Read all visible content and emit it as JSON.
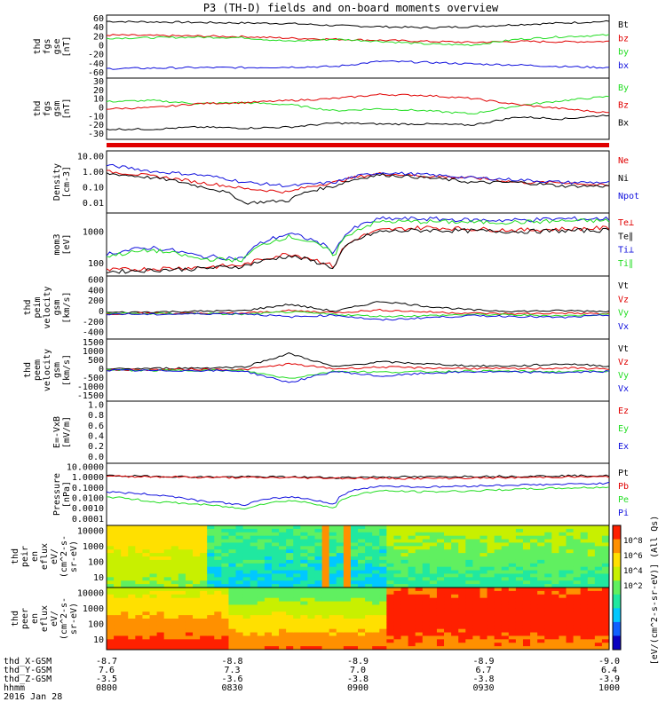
{
  "title": "P3 (TH-D) fields and on-board moments overview",
  "colors": {
    "black": "#000000",
    "red": "#e00000",
    "green": "#22dd22",
    "blue": "#1010dd"
  },
  "chart_data": [
    {
      "type": "line",
      "panel": "fgs_gse",
      "ylabel": [
        "thd",
        "fgs",
        "gse",
        "[nT]"
      ],
      "yticks": [
        "60",
        "40",
        "20",
        "0",
        "-20",
        "-40",
        "-60"
      ],
      "ylim": [
        -60,
        60
      ],
      "series": [
        {
          "name": "Bt",
          "color": "black",
          "values": [
            48,
            47,
            46,
            45,
            44,
            40,
            38,
            36,
            38,
            42,
            45,
            48
          ]
        },
        {
          "name": "bz",
          "color": "red",
          "values": [
            22,
            21,
            20,
            19,
            16,
            14,
            12,
            10,
            8,
            10,
            9,
            10
          ]
        },
        {
          "name": "by",
          "color": "green",
          "values": [
            16,
            17,
            18,
            17,
            10,
            14,
            10,
            5,
            3,
            14,
            19,
            22
          ]
        },
        {
          "name": "bx",
          "color": "blue",
          "values": [
            -42,
            -41,
            -40,
            -40,
            -39,
            -38,
            -28,
            -30,
            -33,
            -35,
            -38,
            -40
          ]
        }
      ]
    },
    {
      "type": "line",
      "panel": "fgs_gsm",
      "ylabel": [
        "thd",
        "fgs",
        "gsm",
        "[nT]"
      ],
      "yticks": [
        "30",
        "20",
        "10",
        "0",
        "-10",
        "-20",
        "-30"
      ],
      "ylim": [
        -30,
        30
      ],
      "series": [
        {
          "name": "By",
          "color": "green",
          "values": [
            7,
            8,
            5,
            6,
            4,
            -2,
            0,
            -2,
            -5,
            3,
            8,
            12
          ]
        },
        {
          "name": "Bz",
          "color": "red",
          "values": [
            0,
            1,
            5,
            6,
            8,
            10,
            14,
            13,
            10,
            4,
            0,
            -4
          ]
        },
        {
          "name": "Bx",
          "color": "black",
          "values": [
            -20,
            -20,
            -18,
            -19,
            -18,
            -14,
            -15,
            -15,
            -16,
            -8,
            -10,
            -6
          ]
        }
      ]
    },
    {
      "type": "line",
      "panel": "density",
      "ylog": true,
      "ylabel": [
        "Density",
        "[cm-3]"
      ],
      "yticks": [
        "10.00",
        "1.00",
        "0.10",
        "0.01"
      ],
      "ylim": [
        0.01,
        10
      ],
      "series": [
        {
          "name": "Ne",
          "color": "red",
          "values": [
            1.0,
            0.6,
            0.3,
            0.15,
            0.1,
            0.3,
            0.8,
            0.6,
            0.5,
            0.3,
            0.3,
            0.2
          ]
        },
        {
          "name": "Ni",
          "color": "black",
          "values": [
            0.8,
            0.5,
            0.2,
            0.03,
            0.04,
            0.2,
            0.7,
            0.5,
            0.3,
            0.3,
            0.2,
            0.2
          ]
        },
        {
          "name": "Npot",
          "color": "blue",
          "values": [
            2.0,
            1.0,
            0.7,
            0.3,
            0.2,
            0.3,
            0.9,
            0.7,
            0.5,
            0.4,
            0.3,
            0.3
          ]
        }
      ]
    },
    {
      "type": "line",
      "panel": "temperature",
      "ylog": true,
      "ylabel": [
        "mom3",
        "[eV]"
      ],
      "yticks": [
        "1000",
        "100"
      ],
      "ylim": [
        50,
        8000
      ],
      "series": [
        {
          "name": "Te⊥",
          "color": "red",
          "values": [
            80,
            90,
            100,
            120,
            300,
            100,
            2000,
            2500,
            2200,
            2000,
            2200,
            2400
          ]
        },
        {
          "name": "Te∥",
          "color": "black",
          "values": [
            70,
            80,
            90,
            110,
            250,
            90,
            1800,
            2000,
            1900,
            1800,
            1900,
            2000
          ]
        },
        {
          "name": "Ti⊥",
          "color": "blue",
          "values": [
            300,
            500,
            250,
            200,
            1500,
            300,
            5000,
            5000,
            4500,
            4500,
            5000,
            5000
          ]
        },
        {
          "name": "Ti∥",
          "color": "green",
          "values": [
            250,
            400,
            200,
            180,
            1200,
            250,
            4000,
            4000,
            3800,
            3800,
            4200,
            4300
          ]
        }
      ]
    },
    {
      "type": "line",
      "panel": "ion_velocity",
      "ylabel": [
        "thd",
        "peim",
        "velocity",
        "gsm",
        "[km/s]"
      ],
      "yticks": [
        "600",
        "400",
        "200",
        "0",
        "-200",
        "-400"
      ],
      "ylim": [
        -400,
        600
      ],
      "series": [
        {
          "name": "Vt",
          "color": "black",
          "values": [
            20,
            30,
            40,
            50,
            150,
            40,
            200,
            120,
            60,
            40,
            50,
            40
          ]
        },
        {
          "name": "Vz",
          "color": "red",
          "values": [
            0,
            10,
            5,
            10,
            50,
            20,
            60,
            30,
            10,
            0,
            10,
            0
          ]
        },
        {
          "name": "Vy",
          "color": "green",
          "values": [
            10,
            0,
            5,
            -10,
            30,
            -10,
            -40,
            -30,
            -10,
            -20,
            -30,
            -10
          ]
        },
        {
          "name": "Vx",
          "color": "blue",
          "values": [
            0,
            -10,
            0,
            5,
            -50,
            -20,
            -100,
            -60,
            -30,
            -40,
            -60,
            -20
          ]
        }
      ]
    },
    {
      "type": "line",
      "panel": "electron_velocity",
      "ylabel": [
        "thd",
        "peem",
        "velocity",
        "gsm",
        "[km/s]"
      ],
      "yticks": [
        "1500",
        "1000",
        "500",
        "0",
        "-500",
        "-1000",
        "-1500"
      ],
      "ylim": [
        -1500,
        1500
      ],
      "series": [
        {
          "name": "Vt",
          "color": "black",
          "values": [
            50,
            80,
            100,
            150,
            800,
            150,
            400,
            300,
            200,
            200,
            300,
            200
          ]
        },
        {
          "name": "Vz",
          "color": "red",
          "values": [
            0,
            20,
            40,
            20,
            300,
            60,
            150,
            100,
            80,
            60,
            100,
            60
          ]
        },
        {
          "name": "Vy",
          "color": "green",
          "values": [
            0,
            -20,
            -10,
            -30,
            -400,
            -50,
            -100,
            -80,
            -40,
            -60,
            -80,
            -40
          ]
        },
        {
          "name": "Vx",
          "color": "blue",
          "values": [
            -10,
            -30,
            -20,
            -40,
            -600,
            -60,
            -300,
            -150,
            -80,
            -100,
            -120,
            -60
          ]
        }
      ]
    },
    {
      "type": "line",
      "panel": "efield",
      "ylabel": [
        "E=-VxB",
        "[mV/m]"
      ],
      "yticks": [
        "1.0",
        "0.8",
        "0.6",
        "0.4",
        "0.2",
        "0.0"
      ],
      "ylim": [
        0,
        1
      ],
      "series": [
        {
          "name": "Ez",
          "color": "red",
          "values": []
        },
        {
          "name": "Ey",
          "color": "green",
          "values": []
        },
        {
          "name": "Ex",
          "color": "blue",
          "values": []
        }
      ]
    },
    {
      "type": "line",
      "panel": "pressure",
      "ylog": true,
      "ylabel": [
        "Pressure",
        "[nPa]"
      ],
      "yticks": [
        "10.0000",
        "1.0000",
        "0.1000",
        "0.0100",
        "0.0010",
        "0.0001"
      ],
      "ylim": [
        0.0001,
        10
      ],
      "series": [
        {
          "name": "Pt",
          "color": "black",
          "values": [
            1.0,
            0.9,
            0.8,
            0.8,
            0.8,
            0.7,
            0.8,
            0.8,
            0.9,
            0.9,
            1.0,
            1.0
          ]
        },
        {
          "name": "Pb",
          "color": "red",
          "values": [
            0.9,
            0.85,
            0.75,
            0.7,
            0.7,
            0.65,
            0.6,
            0.6,
            0.65,
            0.7,
            0.8,
            0.8
          ]
        },
        {
          "name": "Pe",
          "color": "green",
          "values": [
            0.02,
            0.008,
            0.005,
            0.002,
            0.01,
            0.002,
            0.06,
            0.05,
            0.06,
            0.08,
            0.1,
            0.12
          ]
        },
        {
          "name": "Pi",
          "color": "blue",
          "values": [
            0.05,
            0.03,
            0.01,
            0.004,
            0.02,
            0.004,
            0.15,
            0.12,
            0.15,
            0.18,
            0.2,
            0.25
          ]
        }
      ]
    },
    {
      "type": "heatmap",
      "panel": "ion_spectrogram",
      "ylabel": [
        "thd",
        "peir",
        "en",
        "eflux",
        "eV/",
        "(cm^2-s-",
        "sr-eV)"
      ],
      "yticks": [
        "10000",
        "1000",
        "100",
        "10"
      ]
    },
    {
      "type": "heatmap",
      "panel": "electron_spectrogram",
      "ylabel": [
        "thd",
        "peer",
        "en",
        "eflux",
        "eV/",
        "(cm^2-s-",
        "sr-eV)"
      ],
      "yticks": [
        "10000",
        "1000",
        "100",
        "10"
      ]
    }
  ],
  "colorbar": {
    "label": "[eV/(cm^2-s-sr-eV)] (All Qs)",
    "ticks": [
      "10^8",
      "10^6",
      "10^4",
      "10^2"
    ]
  },
  "bottom_axis": {
    "rows": [
      {
        "label": "thd_X-GSM",
        "values": [
          "-8.7",
          "-8.8",
          "-8.9",
          "-8.9",
          "-9.0"
        ]
      },
      {
        "label": "thd_Y-GSM",
        "values": [
          "7.6",
          "7.3",
          "7.0",
          "6.7",
          "6.4"
        ]
      },
      {
        "label": "thd_Z-GSM",
        "values": [
          "-3.5",
          "-3.6",
          "-3.8",
          "-3.8",
          "-3.9"
        ]
      },
      {
        "label": "hhmm",
        "values": [
          "0800",
          "0830",
          "0900",
          "0930",
          "1000"
        ]
      }
    ],
    "date": "2016 Jan 28"
  }
}
